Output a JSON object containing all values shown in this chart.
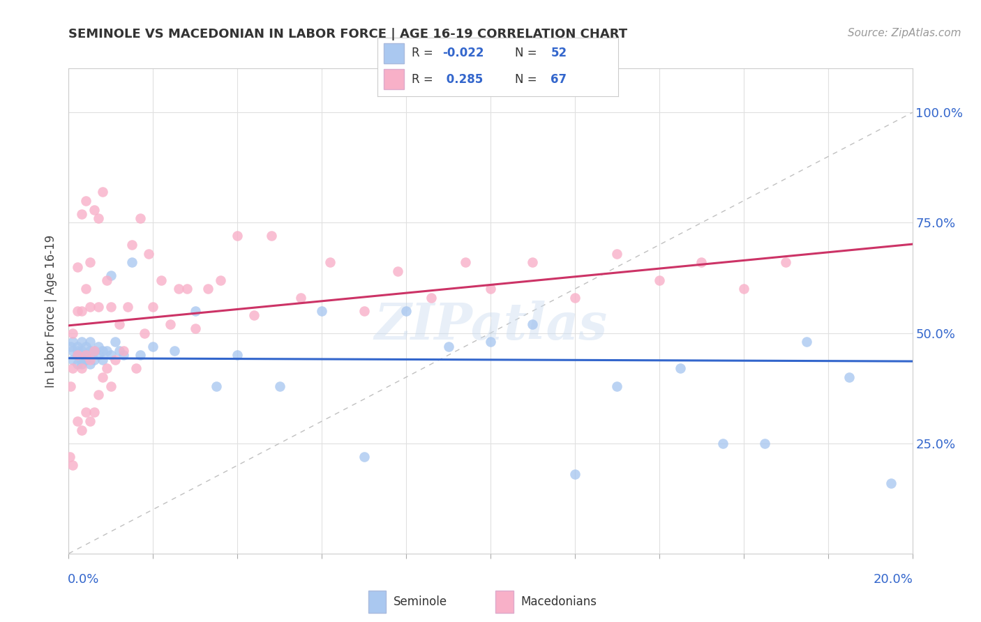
{
  "title": "SEMINOLE VS MACEDONIAN IN LABOR FORCE | AGE 16-19 CORRELATION CHART",
  "source_text": "Source: ZipAtlas.com",
  "ylabel": "In Labor Force | Age 16-19",
  "ylabel_ticks": [
    "25.0%",
    "50.0%",
    "75.0%",
    "100.0%"
  ],
  "ylabel_tick_vals": [
    0.25,
    0.5,
    0.75,
    1.0
  ],
  "xlim": [
    0.0,
    0.2
  ],
  "ylim": [
    0.0,
    1.1
  ],
  "seminole_color": "#aac8f0",
  "macedonian_color": "#f8b0c8",
  "seminole_trend_color": "#3366cc",
  "macedonian_trend_color": "#cc3366",
  "diag_line_color": "#c0c0c0",
  "watermark": "ZIPatlas",
  "seminole_R": -0.022,
  "seminole_N": 52,
  "macedonian_R": 0.285,
  "macedonian_N": 67,
  "seminole_x": [
    0.0005,
    0.001,
    0.001,
    0.001,
    0.002,
    0.002,
    0.002,
    0.002,
    0.003,
    0.003,
    0.003,
    0.003,
    0.004,
    0.004,
    0.004,
    0.005,
    0.005,
    0.005,
    0.006,
    0.006,
    0.007,
    0.007,
    0.008,
    0.008,
    0.009,
    0.01,
    0.01,
    0.011,
    0.012,
    0.013,
    0.015,
    0.017,
    0.02,
    0.025,
    0.03,
    0.035,
    0.04,
    0.05,
    0.06,
    0.07,
    0.08,
    0.09,
    0.1,
    0.11,
    0.12,
    0.13,
    0.145,
    0.155,
    0.165,
    0.175,
    0.185,
    0.195
  ],
  "seminole_y": [
    0.47,
    0.46,
    0.44,
    0.48,
    0.45,
    0.47,
    0.43,
    0.46,
    0.44,
    0.46,
    0.48,
    0.43,
    0.45,
    0.47,
    0.44,
    0.46,
    0.43,
    0.48,
    0.44,
    0.46,
    0.45,
    0.47,
    0.46,
    0.44,
    0.46,
    0.63,
    0.45,
    0.48,
    0.46,
    0.45,
    0.66,
    0.45,
    0.47,
    0.46,
    0.55,
    0.38,
    0.45,
    0.38,
    0.55,
    0.22,
    0.55,
    0.47,
    0.48,
    0.52,
    0.18,
    0.38,
    0.42,
    0.25,
    0.25,
    0.48,
    0.4,
    0.16
  ],
  "macedonian_x": [
    0.0003,
    0.0005,
    0.001,
    0.001,
    0.001,
    0.002,
    0.002,
    0.002,
    0.002,
    0.003,
    0.003,
    0.003,
    0.003,
    0.004,
    0.004,
    0.004,
    0.004,
    0.005,
    0.005,
    0.005,
    0.005,
    0.006,
    0.006,
    0.006,
    0.007,
    0.007,
    0.007,
    0.008,
    0.008,
    0.009,
    0.009,
    0.01,
    0.01,
    0.011,
    0.012,
    0.013,
    0.014,
    0.015,
    0.016,
    0.017,
    0.018,
    0.019,
    0.02,
    0.022,
    0.024,
    0.026,
    0.028,
    0.03,
    0.033,
    0.036,
    0.04,
    0.044,
    0.048,
    0.055,
    0.062,
    0.07,
    0.078,
    0.086,
    0.094,
    0.1,
    0.11,
    0.12,
    0.13,
    0.14,
    0.15,
    0.16,
    0.17
  ],
  "macedonian_y": [
    0.22,
    0.38,
    0.42,
    0.5,
    0.2,
    0.3,
    0.45,
    0.55,
    0.65,
    0.28,
    0.42,
    0.55,
    0.77,
    0.32,
    0.45,
    0.6,
    0.8,
    0.3,
    0.44,
    0.56,
    0.66,
    0.32,
    0.46,
    0.78,
    0.36,
    0.56,
    0.76,
    0.4,
    0.82,
    0.42,
    0.62,
    0.38,
    0.56,
    0.44,
    0.52,
    0.46,
    0.56,
    0.7,
    0.42,
    0.76,
    0.5,
    0.68,
    0.56,
    0.62,
    0.52,
    0.6,
    0.6,
    0.51,
    0.6,
    0.62,
    0.72,
    0.54,
    0.72,
    0.58,
    0.66,
    0.55,
    0.64,
    0.58,
    0.66,
    0.6,
    0.66,
    0.58,
    0.68,
    0.62,
    0.66,
    0.6,
    0.66
  ]
}
